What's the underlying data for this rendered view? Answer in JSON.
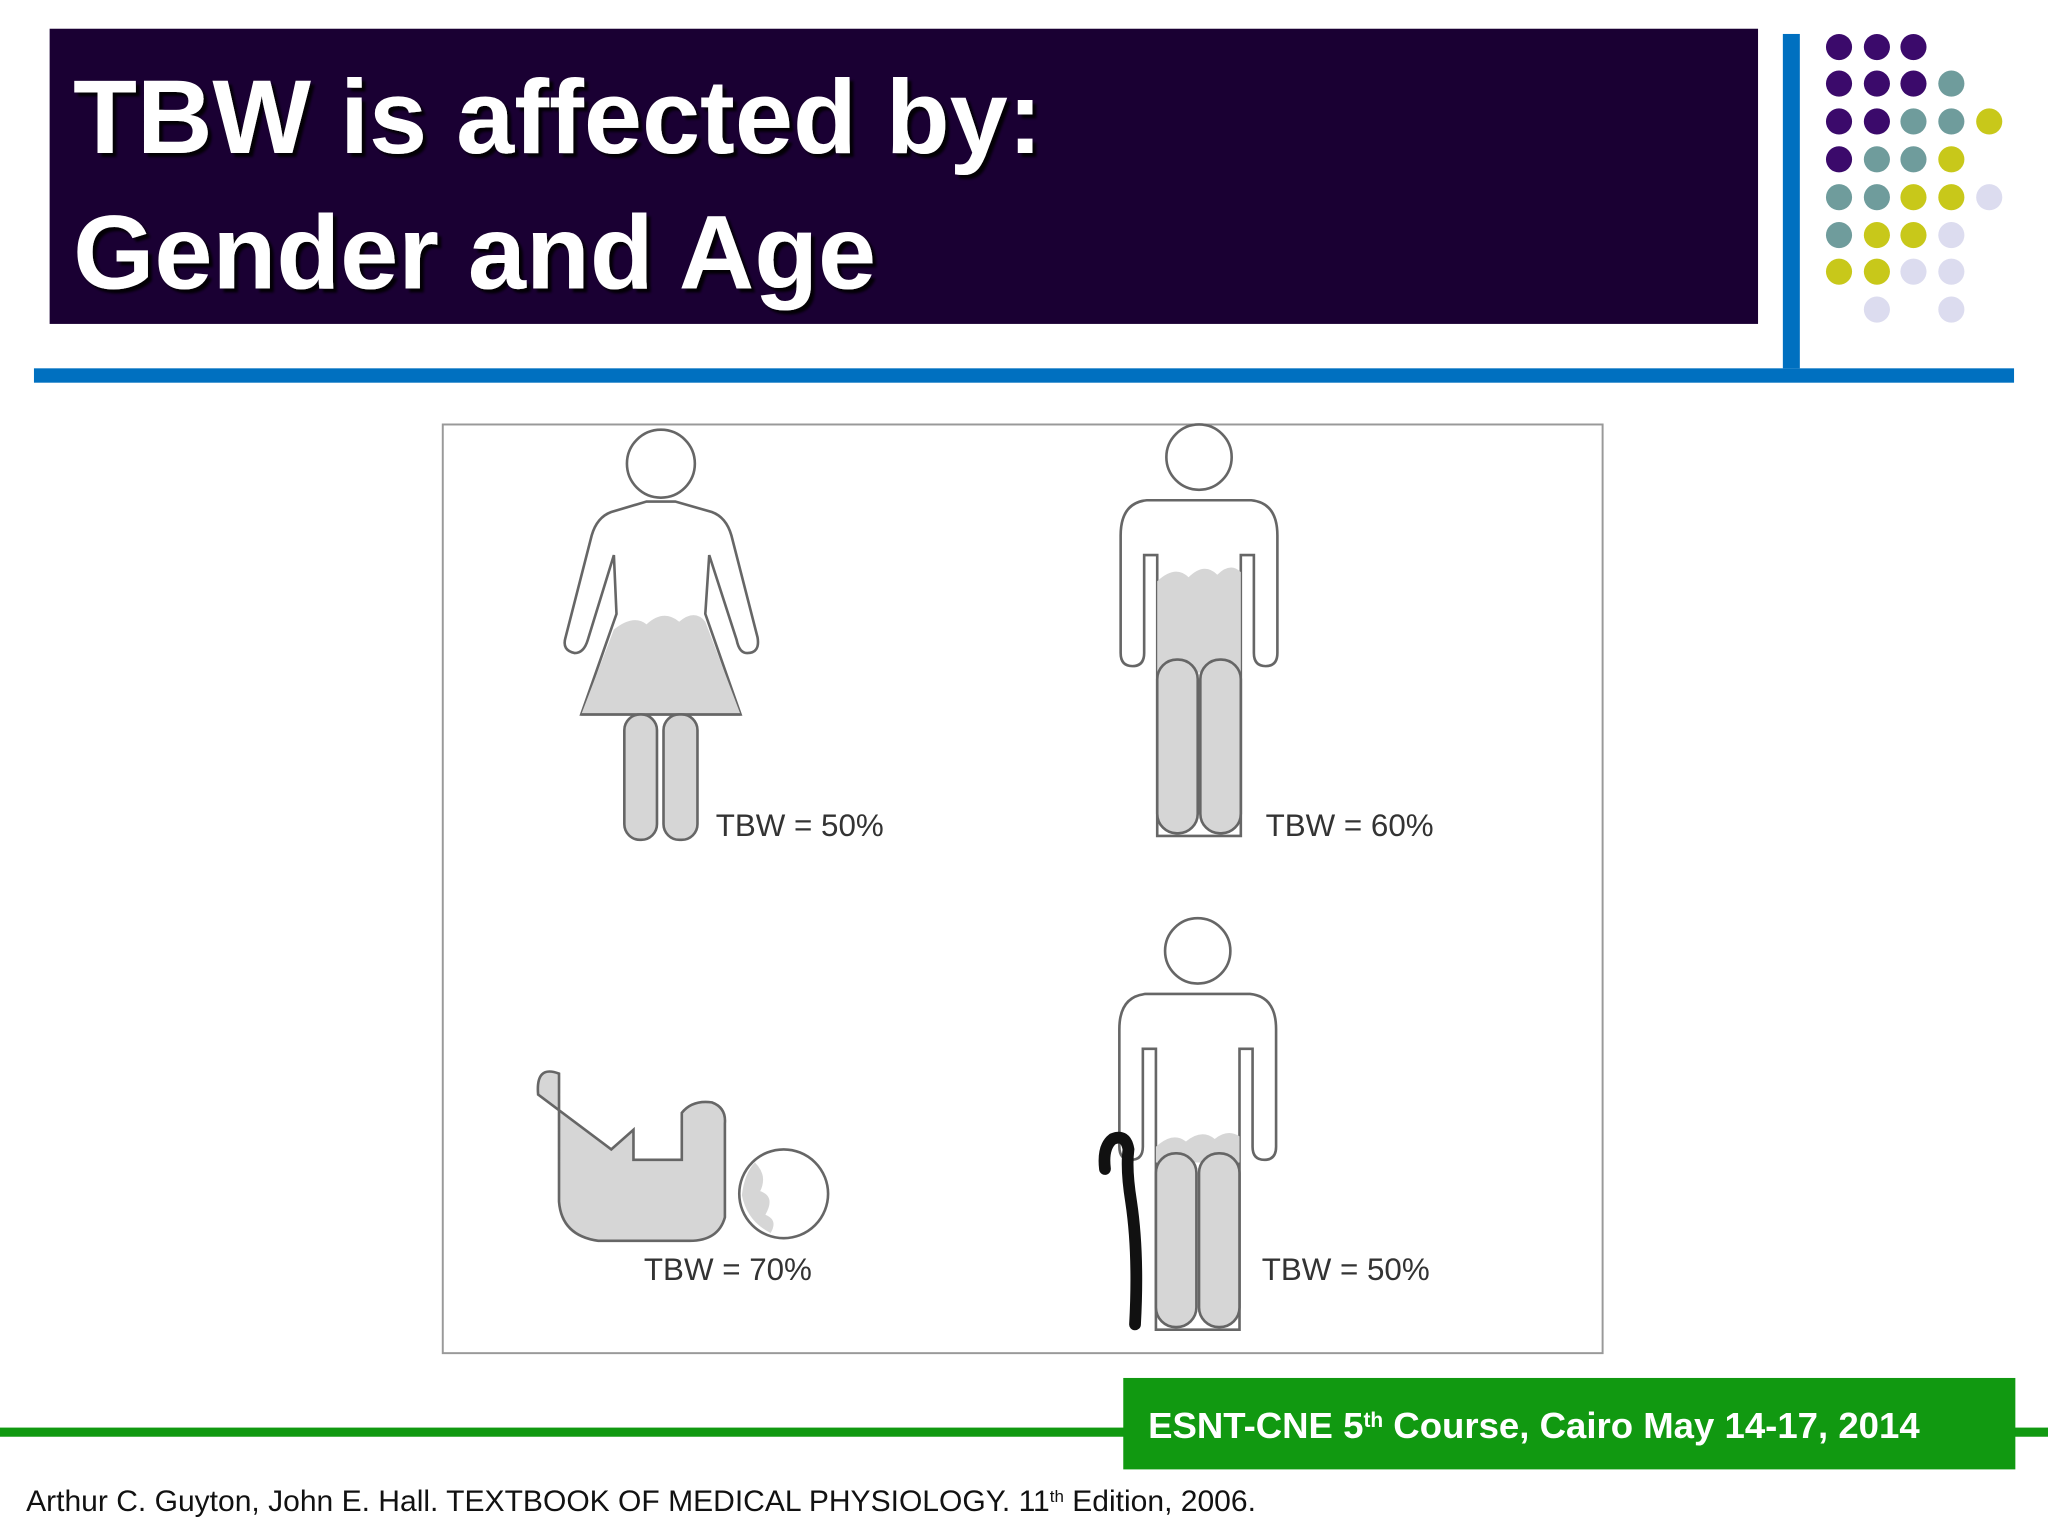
{
  "header": {
    "title_lines": [
      "TBW is affected by:",
      "Gender and Age"
    ]
  },
  "figure": {
    "labels": [
      "TBW = 50%",
      "TBW = 60%",
      "TBW = 70%",
      "TBW = 50%"
    ]
  },
  "footer": {
    "banner": {
      "text": "ESNT-CNE 5",
      "superscript": "th",
      "text_after": " Course, Cairo May 14-17, 2014"
    },
    "citation": {
      "text": "Arthur C. Guyton, John E. Hall. TEXTBOOK OF MEDICAL PHYSIOLOGY. 11",
      "superscript": "th",
      "text_after": " Edition, 2006."
    }
  }
}
